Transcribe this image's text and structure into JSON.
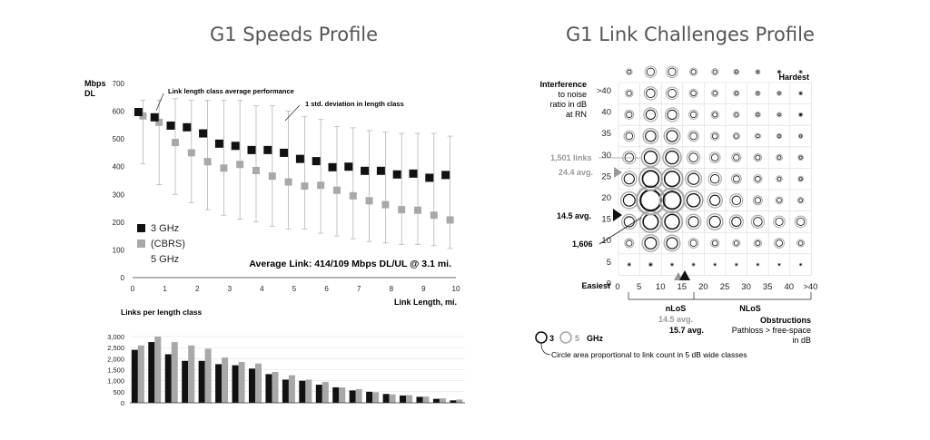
{
  "left_title": "G1 Speeds Profile",
  "right_title": "G1 Link Challenges Profile",
  "colors": {
    "ghz3": "#111111",
    "ghz5": "#a8a8a8",
    "grid": "#d9d9d9"
  },
  "chart_data": [
    {
      "type": "scatter",
      "title": "",
      "ylabel_line1": "Mbps",
      "ylabel_line2": "DL",
      "xlabel": "Link Length, mi.",
      "xlim": [
        0,
        10
      ],
      "ylim": [
        0,
        700
      ],
      "xticks": [
        0,
        1,
        2,
        3,
        4,
        5,
        6,
        7,
        8,
        9,
        10
      ],
      "yticks": [
        0,
        100,
        200,
        300,
        400,
        500,
        600,
        700
      ],
      "annotation_avg": "Link length class average performance",
      "annotation_std": "1 std. deviation in length class",
      "summary": "Average Link:  414/109 Mbps DL/UL @ 3.1 mi.",
      "legend": {
        "s3": "3 GHz",
        "cbrs": "(CBRS)",
        "s5": "5 GHz"
      },
      "x": [
        0.25,
        0.75,
        1.25,
        1.75,
        2.25,
        2.75,
        3.25,
        3.75,
        4.25,
        4.75,
        5.25,
        5.75,
        6.25,
        6.75,
        7.25,
        7.75,
        8.25,
        8.75,
        9.25,
        9.75
      ],
      "series": [
        {
          "name": "3 GHz",
          "values": [
            597,
            578,
            548,
            542,
            520,
            483,
            475,
            460,
            460,
            450,
            428,
            420,
            398,
            400,
            385,
            385,
            372,
            375,
            360,
            370
          ]
        },
        {
          "name": "5 GHz",
          "values": [
            583,
            560,
            487,
            450,
            418,
            395,
            408,
            386,
            366,
            345,
            330,
            333,
            315,
            295,
            277,
            263,
            245,
            243,
            225,
            208
          ]
        }
      ],
      "error_low": [
        410,
        335,
        300,
        270,
        245,
        225,
        210,
        200,
        185,
        175,
        175,
        160,
        150,
        140,
        130,
        125,
        120,
        120,
        115,
        105
      ],
      "error_high": [
        640,
        640,
        645,
        640,
        640,
        640,
        640,
        620,
        620,
        600,
        580,
        570,
        545,
        540,
        530,
        525,
        520,
        520,
        520,
        510
      ]
    },
    {
      "type": "bar",
      "title": "Links per length class",
      "ylim": [
        0,
        3000
      ],
      "yticks": [
        "0",
        "500",
        "1,000",
        "1,500",
        "2,000",
        "2,500",
        "3,000"
      ],
      "series": [
        {
          "name": "3 GHz",
          "values": [
            2400,
            2750,
            2200,
            1900,
            1900,
            1750,
            1700,
            1550,
            1300,
            1050,
            1000,
            820,
            700,
            560,
            500,
            400,
            330,
            270,
            180,
            110
          ]
        },
        {
          "name": "5 GHz",
          "values": [
            2600,
            3000,
            2750,
            2600,
            2450,
            2050,
            1850,
            1780,
            1400,
            1250,
            1050,
            950,
            700,
            620,
            480,
            380,
            350,
            280,
            200,
            150
          ]
        }
      ]
    },
    {
      "type": "scatter",
      "title": "",
      "hardest_label": "Hardest",
      "easiest_label": "Easiest",
      "ylabel_lines": [
        "Interference",
        "to noise",
        "ratio in dB",
        "at RN"
      ],
      "xticks": [
        "0",
        "5",
        "10",
        "15",
        "20",
        "25",
        "30",
        "35",
        "40",
        ">40"
      ],
      "yticks": [
        "0",
        "5",
        "10",
        "15",
        "20",
        "25",
        "30",
        "35",
        "40",
        ">40"
      ],
      "annotations": {
        "links_5": "1,501 links",
        "avg_5_inr": "24.4 avg.",
        "avg_3_inr": "14.5 avg.",
        "links_3": "1,606",
        "nlos_label": "nLoS",
        "nlos_avg5": "14.5 avg.",
        "nlos_avg3": "15.7 avg.",
        "NLoS_label": "NLoS",
        "obstructions": "Obstructions",
        "pathloss": "Pathloss > free-space",
        "in_db": "in dB",
        "legend_3": "3",
        "legend_5": "5",
        "legend_ghz": "GHz",
        "legend_note": "Circle area proportional to link count in 5 dB wide classes"
      },
      "grid_rows": [
        [
          0,
          [
            0.5,
            0.6,
            0.4,
            0.4,
            0.3,
            0.3,
            0.3,
            0.2,
            0.2
          ]
        ],
        [
          1,
          [
            2.0,
            4.0,
            3.8,
            2.2,
            1.8,
            1.5,
            1.6,
            2.2,
            1.5
          ]
        ],
        [
          2,
          [
            3.5,
            5.2,
            5.0,
            3.5,
            3.8,
            3.2,
            3.0,
            2.6,
            2.6
          ]
        ],
        [
          3,
          [
            4.0,
            7.0,
            6.0,
            4.5,
            3.5,
            3.0,
            2.0,
            1.5,
            1.2
          ]
        ],
        [
          4,
          [
            3.5,
            5.6,
            5.2,
            3.8,
            3.0,
            2.2,
            1.8,
            1.2,
            1.0
          ]
        ],
        [
          5,
          [
            3.0,
            4.4,
            4.4,
            3.0,
            2.4,
            2.0,
            1.6,
            1.2,
            1.0
          ]
        ],
        [
          6,
          [
            2.4,
            3.6,
            3.8,
            2.4,
            1.8,
            1.4,
            1.1,
            0.9,
            0.8
          ]
        ],
        [
          7,
          [
            2.0,
            3.2,
            3.2,
            2.0,
            1.6,
            1.2,
            1.0,
            0.8,
            0.7
          ]
        ],
        [
          8,
          [
            1.6,
            3.0,
            2.8,
            1.8,
            1.4,
            1.1,
            0.9,
            0.8,
            0.6
          ]
        ],
        [
          9,
          [
            1.2,
            2.6,
            2.6,
            1.6,
            1.3,
            1.0,
            0.8,
            0.6,
            0.5
          ]
        ]
      ]
    }
  ]
}
